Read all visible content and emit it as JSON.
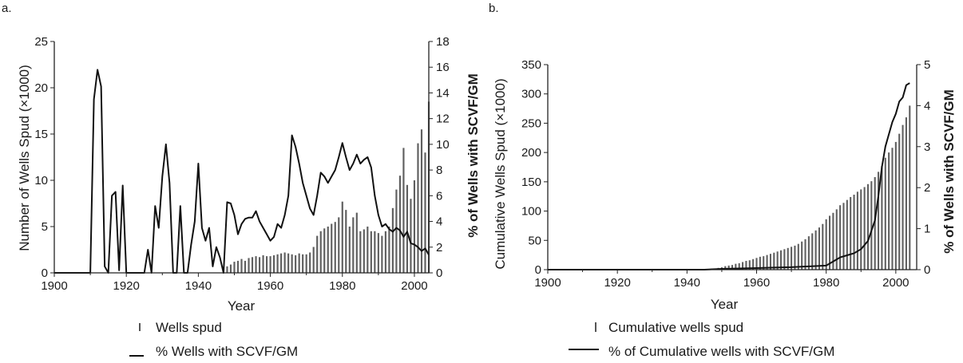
{
  "chart_data": [
    {
      "panel_label": "a.",
      "type": "bar",
      "xlabel": "Year",
      "ylabel": "Number of Wells Spud (×1000)",
      "y2label": "% of Wells with SCVF/GM",
      "xlim": [
        1900,
        2004
      ],
      "ylim": [
        0,
        25
      ],
      "y2lim": [
        0,
        18
      ],
      "xticks": [
        1900,
        1920,
        1940,
        1960,
        1980,
        2000
      ],
      "yticks": [
        0,
        5,
        10,
        15,
        20,
        25
      ],
      "y2ticks": [
        0,
        2,
        4,
        6,
        8,
        10,
        12,
        14,
        16,
        18
      ],
      "grid": false,
      "legend": [
        {
          "label": "Wells spud",
          "marker": "bar"
        },
        {
          "label": "% Wells with SCVF/GM",
          "marker": "line"
        }
      ],
      "series": [
        {
          "name": "Wells spud",
          "kind": "bar",
          "axis": "left",
          "x": [
            1947,
            1948,
            1949,
            1950,
            1951,
            1952,
            1953,
            1954,
            1955,
            1956,
            1957,
            1958,
            1959,
            1960,
            1961,
            1962,
            1963,
            1964,
            1965,
            1966,
            1967,
            1968,
            1969,
            1970,
            1971,
            1972,
            1973,
            1974,
            1975,
            1976,
            1977,
            1978,
            1979,
            1980,
            1981,
            1982,
            1983,
            1984,
            1985,
            1986,
            1987,
            1988,
            1989,
            1990,
            1991,
            1992,
            1993,
            1994,
            1995,
            1996,
            1997,
            1998,
            1999,
            2000,
            2001,
            2002,
            2003,
            2004
          ],
          "values": [
            0.3,
            0.7,
            0.9,
            1.2,
            1.3,
            1.5,
            1.3,
            1.6,
            1.7,
            1.8,
            1.7,
            1.9,
            1.8,
            1.8,
            1.9,
            2.0,
            2.1,
            2.2,
            2.1,
            2.0,
            1.9,
            2.1,
            2.0,
            2.0,
            2.2,
            2.8,
            4.0,
            4.5,
            4.8,
            5.0,
            5.3,
            5.5,
            6.0,
            7.7,
            6.8,
            5.0,
            6.0,
            6.5,
            4.5,
            4.7,
            5.0,
            4.5,
            4.5,
            4.3,
            4.0,
            4.5,
            5.0,
            7.0,
            9.0,
            10.5,
            13.5,
            9.5,
            8.0,
            10.0,
            14.0,
            15.5,
            13.0,
            18.5
          ]
        },
        {
          "name": "% Wells with SCVF/GM",
          "kind": "line",
          "axis": "right",
          "x": [
            1900,
            1910,
            1911,
            1912,
            1913,
            1914,
            1915,
            1916,
            1917,
            1918,
            1919,
            1920,
            1921,
            1925,
            1926,
            1927,
            1928,
            1929,
            1930,
            1931,
            1932,
            1933,
            1934,
            1935,
            1936,
            1937,
            1938,
            1939,
            1940,
            1941,
            1942,
            1943,
            1944,
            1945,
            1946,
            1947,
            1948,
            1949,
            1950,
            1951,
            1952,
            1953,
            1954,
            1955,
            1956,
            1957,
            1958,
            1959,
            1960,
            1961,
            1962,
            1963,
            1964,
            1965,
            1966,
            1967,
            1968,
            1969,
            1970,
            1971,
            1972,
            1973,
            1974,
            1975,
            1976,
            1977,
            1978,
            1979,
            1980,
            1981,
            1982,
            1983,
            1984,
            1985,
            1986,
            1987,
            1988,
            1989,
            1990,
            1991,
            1992,
            1993,
            1994,
            1995,
            1996,
            1997,
            1998,
            1999,
            2000,
            2001,
            2002,
            2003,
            2004
          ],
          "values": [
            0,
            0,
            13.5,
            15.8,
            14.5,
            0.5,
            0,
            6,
            6.3,
            0.2,
            6.8,
            0,
            0,
            0,
            1.8,
            0,
            5.2,
            3.5,
            7.5,
            10,
            7,
            0,
            0,
            5.2,
            0,
            0,
            2.2,
            4,
            8.5,
            3.5,
            2.5,
            3.5,
            0.5,
            2,
            1.2,
            0,
            5.5,
            5.4,
            4.5,
            3,
            3.8,
            4.2,
            4.3,
            4.3,
            4.8,
            4,
            3.5,
            3,
            2.5,
            2.8,
            3.8,
            3.5,
            4.5,
            6,
            10.7,
            9.8,
            8.5,
            7,
            6,
            5,
            4.5,
            6,
            7.8,
            7.5,
            7,
            7.5,
            8,
            9,
            10.1,
            9,
            8,
            8.5,
            9.2,
            8.5,
            8.8,
            9,
            8.2,
            6,
            4.5,
            3.6,
            3.8,
            3.4,
            3.2,
            3.5,
            3.3,
            2.8,
            3.2,
            2.3,
            2.2,
            2.0,
            1.7,
            1.9,
            1.4
          ]
        }
      ]
    },
    {
      "panel_label": "b.",
      "type": "bar",
      "xlabel": "Year",
      "ylabel": "Cumulative Wells Spud (×1000)",
      "y2label": "% of Wells with SCVF/GM",
      "xlim": [
        1900,
        2006
      ],
      "ylim": [
        0,
        350
      ],
      "y2lim": [
        0,
        5
      ],
      "xticks": [
        1900,
        1920,
        1940,
        1960,
        1980,
        2000
      ],
      "yticks": [
        0,
        50,
        100,
        150,
        200,
        250,
        300,
        350
      ],
      "y2ticks": [
        0,
        1,
        2,
        3,
        4,
        5
      ],
      "grid": false,
      "legend": [
        {
          "label": "Cumulative wells spud",
          "marker": "bar"
        },
        {
          "label": "% of Cumulative wells with SCVF/GM",
          "marker": "line"
        }
      ],
      "series": [
        {
          "name": "Cumulative wells spud",
          "kind": "bar",
          "axis": "left",
          "x": [
            1947,
            1948,
            1949,
            1950,
            1951,
            1952,
            1953,
            1954,
            1955,
            1956,
            1957,
            1958,
            1959,
            1960,
            1961,
            1962,
            1963,
            1964,
            1965,
            1966,
            1967,
            1968,
            1969,
            1970,
            1971,
            1972,
            1973,
            1974,
            1975,
            1976,
            1977,
            1978,
            1979,
            1980,
            1981,
            1982,
            1983,
            1984,
            1985,
            1986,
            1987,
            1988,
            1989,
            1990,
            1991,
            1992,
            1993,
            1994,
            1995,
            1996,
            1997,
            1998,
            1999,
            2000,
            2001,
            2002,
            2003,
            2004
          ],
          "values": [
            1,
            2,
            3,
            4,
            6,
            7,
            8,
            10,
            11,
            13,
            15,
            16,
            18,
            20,
            22,
            23,
            25,
            27,
            29,
            31,
            33,
            35,
            37,
            39,
            41,
            44,
            48,
            52,
            57,
            62,
            67,
            72,
            78,
            86,
            92,
            97,
            103,
            110,
            114,
            119,
            124,
            128,
            133,
            137,
            141,
            146,
            151,
            158,
            167,
            177,
            191,
            200,
            208,
            218,
            232,
            247,
            260,
            280
          ]
        },
        {
          "name": "% of Cumulative wells with SCVF/GM",
          "kind": "line",
          "axis": "right",
          "x": [
            1900,
            1945,
            1950,
            1955,
            1960,
            1965,
            1970,
            1975,
            1980,
            1982,
            1984,
            1986,
            1988,
            1990,
            1992,
            1994,
            1995,
            1996,
            1997,
            1998,
            1999,
            2000,
            2001,
            2002,
            2003,
            2004
          ],
          "values": [
            0,
            0,
            0.02,
            0.03,
            0.04,
            0.05,
            0.06,
            0.08,
            0.1,
            0.2,
            0.3,
            0.35,
            0.4,
            0.5,
            0.7,
            1.2,
            1.8,
            2.5,
            3,
            3.3,
            3.6,
            3.8,
            4.1,
            4.2,
            4.5,
            4.55
          ]
        }
      ]
    }
  ]
}
